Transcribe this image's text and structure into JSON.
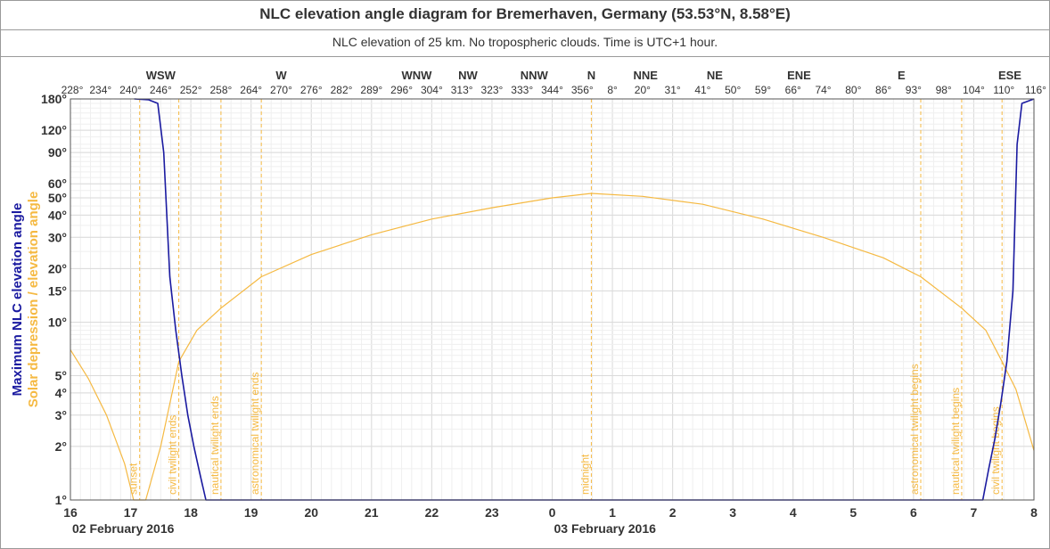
{
  "title": "NLC elevation angle diagram for Bremerhaven, Germany (53.53°N, 8.58°E)",
  "subtitle": "NLC elevation of 25 km. No tropospheric clouds. Time is UTC+1 hour.",
  "colors": {
    "nlc": "#1a1aa0",
    "sun": "#f5b942",
    "grid": "#e4e4e4",
    "axis": "#333333"
  },
  "chart_data": {
    "type": "line",
    "y_axis_label_nlc": "Maximum NLC elevation angle",
    "y_axis_label_sun": "Solar depression / elevation angle",
    "y_scale": "log",
    "ylim": [
      1,
      180
    ],
    "y_ticks": [
      {
        "value": 1,
        "label": "1°"
      },
      {
        "value": 2,
        "label": "2°"
      },
      {
        "value": 3,
        "label": "3°"
      },
      {
        "value": 4,
        "label": "4°"
      },
      {
        "value": 5,
        "label": "5°"
      },
      {
        "value": 10,
        "label": "10°"
      },
      {
        "value": 15,
        "label": "15°"
      },
      {
        "value": 20,
        "label": "20°"
      },
      {
        "value": 30,
        "label": "30°"
      },
      {
        "value": 40,
        "label": "40°"
      },
      {
        "value": 50,
        "label": "50°"
      },
      {
        "value": 60,
        "label": "60°"
      },
      {
        "value": 90,
        "label": "90°"
      },
      {
        "value": 120,
        "label": "120°"
      },
      {
        "value": 180,
        "label": "180°"
      }
    ],
    "x_time_range_hours": [
      16,
      32
    ],
    "x_hour_labels": [
      "16",
      "17",
      "18",
      "19",
      "20",
      "21",
      "22",
      "23",
      "0",
      "1",
      "2",
      "3",
      "4",
      "5",
      "6",
      "7",
      "8"
    ],
    "x_date_labels": [
      {
        "hour": 16,
        "label": "02 February 2016"
      },
      {
        "hour": 24,
        "label": "03 February 2016"
      }
    ],
    "azimuth_labels": [
      "228°",
      "234°",
      "240°",
      "246°",
      "252°",
      "258°",
      "264°",
      "270°",
      "276°",
      "282°",
      "289°",
      "296°",
      "304°",
      "313°",
      "323°",
      "333°",
      "344°",
      "356°",
      "8°",
      "20°",
      "31°",
      "41°",
      "50°",
      "59°",
      "66°",
      "74°",
      "80°",
      "86°",
      "93°",
      "98°",
      "104°",
      "110°",
      "116°"
    ],
    "compass_labels": [
      {
        "label": "WSW",
        "hour": 17.5
      },
      {
        "label": "W",
        "hour": 19.5
      },
      {
        "label": "WNW",
        "hour": 21.75
      },
      {
        "label": "NW",
        "hour": 22.6
      },
      {
        "label": "NNW",
        "hour": 23.7
      },
      {
        "label": "N",
        "hour": 24.65
      },
      {
        "label": "NNE",
        "hour": 25.55
      },
      {
        "label": "NE",
        "hour": 26.7
      },
      {
        "label": "ENE",
        "hour": 28.1
      },
      {
        "label": "E",
        "hour": 29.8
      },
      {
        "label": "ESE",
        "hour": 31.6
      }
    ],
    "events": [
      {
        "hour": 17.15,
        "label": "sunset"
      },
      {
        "hour": 17.8,
        "label": "civil twilight ends"
      },
      {
        "hour": 18.5,
        "label": "nautical twilight ends"
      },
      {
        "hour": 19.17,
        "label": "astronomical twilight ends"
      },
      {
        "hour": 24.65,
        "label": "midnight"
      },
      {
        "hour": 30.12,
        "label": "astronomical twilight begins"
      },
      {
        "hour": 30.8,
        "label": "nautical twilight begins"
      },
      {
        "hour": 31.47,
        "label": "civil twilight begins"
      }
    ],
    "series": [
      {
        "key": "solar_elevation",
        "color": "#f5b942",
        "x_hours": [
          16.0,
          16.3,
          16.6,
          16.9,
          17.05,
          17.15,
          17.25,
          17.5,
          17.8,
          18.1,
          18.5,
          19.17,
          20.0,
          21.0,
          22.0,
          23.0,
          24.0,
          24.65,
          25.5,
          26.5,
          27.5,
          28.5,
          29.5,
          30.12,
          30.8,
          31.2,
          31.47,
          31.7,
          32.0
        ],
        "y_deg": [
          7.0,
          4.8,
          3.0,
          1.6,
          1.0,
          0.9,
          1.0,
          2.0,
          6.0,
          9.0,
          12.0,
          18.0,
          24.0,
          31.0,
          38.0,
          44.0,
          50.0,
          53.0,
          51.0,
          46.0,
          38.0,
          30.0,
          23.0,
          18.0,
          12.0,
          9.0,
          6.0,
          4.2,
          1.9
        ]
      },
      {
        "key": "nlc_max_elevation",
        "color": "#1a1aa0",
        "x_hours": [
          17.06,
          17.3,
          17.45,
          17.55,
          17.65,
          17.75,
          17.85,
          17.95,
          18.05,
          18.15,
          18.25,
          31.15,
          31.25,
          31.35,
          31.45,
          31.55,
          31.65,
          31.72,
          31.8,
          32.0
        ],
        "y_deg": [
          180,
          178,
          170,
          90,
          18,
          9,
          5,
          3,
          2,
          1.4,
          1.0,
          1.0,
          1.5,
          2.2,
          3.5,
          6.0,
          15,
          100,
          170,
          180
        ]
      }
    ]
  }
}
